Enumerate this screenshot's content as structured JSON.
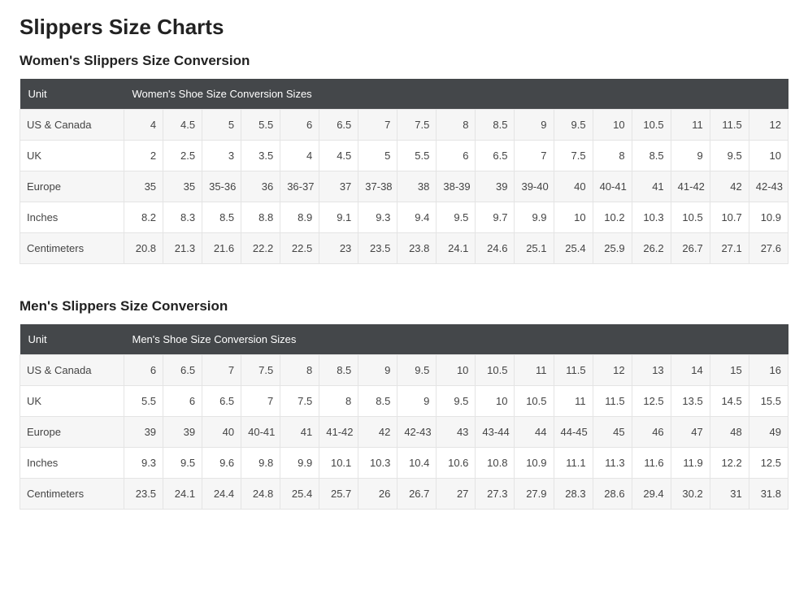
{
  "page": {
    "title": "Slippers Size Charts",
    "background_color": "#ffffff",
    "text_color": "#333333",
    "header_bg": "#44474a",
    "header_text_color": "#ffffff",
    "row_odd_bg": "#f6f6f6",
    "row_even_bg": "#ffffff",
    "cell_border_color": "#e4e4e4",
    "title_fontsize": 26,
    "section_title_fontsize": 17,
    "cell_fontsize": 13
  },
  "sections": [
    {
      "id": "womens",
      "title": "Women's Slippers Size Conversion",
      "header_unit_label": "Unit",
      "header_span_label": "Women's Shoe Size Conversion Sizes",
      "num_value_cols": 17,
      "rows": [
        {
          "label": "US & Canada",
          "values": [
            "4",
            "4.5",
            "5",
            "5.5",
            "6",
            "6.5",
            "7",
            "7.5",
            "8",
            "8.5",
            "9",
            "9.5",
            "10",
            "10.5",
            "11",
            "11.5",
            "12"
          ]
        },
        {
          "label": "UK",
          "values": [
            "2",
            "2.5",
            "3",
            "3.5",
            "4",
            "4.5",
            "5",
            "5.5",
            "6",
            "6.5",
            "7",
            "7.5",
            "8",
            "8.5",
            "9",
            "9.5",
            "10"
          ]
        },
        {
          "label": "Europe",
          "values": [
            "35",
            "35",
            "35-36",
            "36",
            "36-37",
            "37",
            "37-38",
            "38",
            "38-39",
            "39",
            "39-40",
            "40",
            "40-41",
            "41",
            "41-42",
            "42",
            "42-43"
          ]
        },
        {
          "label": "Inches",
          "values": [
            "8.2",
            "8.3",
            "8.5",
            "8.8",
            "8.9",
            "9.1",
            "9.3",
            "9.4",
            "9.5",
            "9.7",
            "9.9",
            "10",
            "10.2",
            "10.3",
            "10.5",
            "10.7",
            "10.9"
          ]
        },
        {
          "label": "Centimeters",
          "values": [
            "20.8",
            "21.3",
            "21.6",
            "22.2",
            "22.5",
            "23",
            "23.5",
            "23.8",
            "24.1",
            "24.6",
            "25.1",
            "25.4",
            "25.9",
            "26.2",
            "26.7",
            "27.1",
            "27.6"
          ]
        }
      ]
    },
    {
      "id": "mens",
      "title": "Men's Slippers Size Conversion",
      "header_unit_label": "Unit",
      "header_span_label": "Men's Shoe Size Conversion Sizes",
      "num_value_cols": 17,
      "rows": [
        {
          "label": "US & Canada",
          "values": [
            "6",
            "6.5",
            "7",
            "7.5",
            "8",
            "8.5",
            "9",
            "9.5",
            "10",
            "10.5",
            "11",
            "11.5",
            "12",
            "13",
            "14",
            "15",
            "16"
          ]
        },
        {
          "label": "UK",
          "values": [
            "5.5",
            "6",
            "6.5",
            "7",
            "7.5",
            "8",
            "8.5",
            "9",
            "9.5",
            "10",
            "10.5",
            "11",
            "11.5",
            "12.5",
            "13.5",
            "14.5",
            "15.5"
          ]
        },
        {
          "label": "Europe",
          "values": [
            "39",
            "39",
            "40",
            "40-41",
            "41",
            "41-42",
            "42",
            "42-43",
            "43",
            "43-44",
            "44",
            "44-45",
            "45",
            "46",
            "47",
            "48",
            "49"
          ]
        },
        {
          "label": "Inches",
          "values": [
            "9.3",
            "9.5",
            "9.6",
            "9.8",
            "9.9",
            "10.1",
            "10.3",
            "10.4",
            "10.6",
            "10.8",
            "10.9",
            "11.1",
            "11.3",
            "11.6",
            "11.9",
            "12.2",
            "12.5"
          ]
        },
        {
          "label": "Centimeters",
          "values": [
            "23.5",
            "24.1",
            "24.4",
            "24.8",
            "25.4",
            "25.7",
            "26",
            "26.7",
            "27",
            "27.3",
            "27.9",
            "28.3",
            "28.6",
            "29.4",
            "30.2",
            "31",
            "31.8"
          ]
        }
      ]
    }
  ]
}
